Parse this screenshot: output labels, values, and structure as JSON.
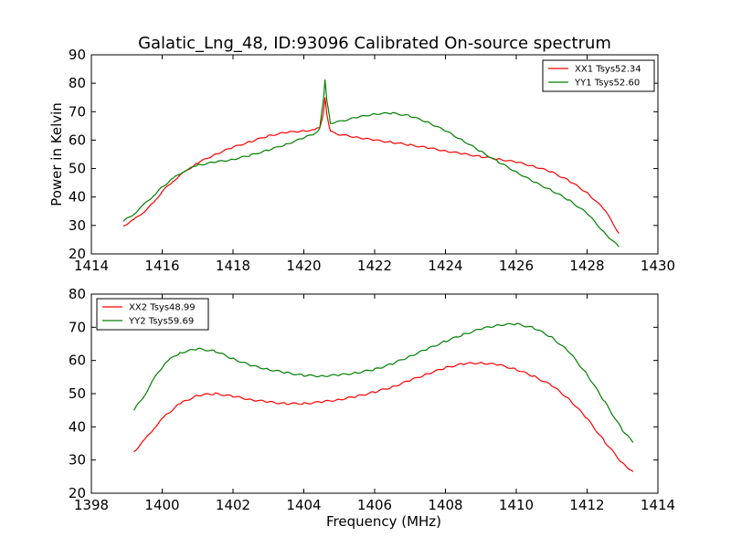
{
  "title": "Galatic_Lng_48, ID:93096 Calibrated On-source spectrum",
  "chart_data": [
    {
      "type": "line",
      "title": "Galatic_Lng_48, ID:93096 Calibrated On-source spectrum",
      "xlabel": "",
      "ylabel": "Power in Kelvin",
      "xlim": [
        1414,
        1430
      ],
      "ylim": [
        20,
        90
      ],
      "xticks": [
        1414,
        1416,
        1418,
        1420,
        1422,
        1424,
        1426,
        1428,
        1430
      ],
      "yticks": [
        20,
        30,
        40,
        50,
        60,
        70,
        80,
        90
      ],
      "legend_position": "top-right",
      "series": [
        {
          "name": "XX1 Tsys52.34",
          "color": "#ff0000",
          "points": [
            [
              1414.9,
              29.8
            ],
            [
              1415.2,
              32
            ],
            [
              1415.5,
              35
            ],
            [
              1415.8,
              38.5
            ],
            [
              1416.0,
              42
            ],
            [
              1416.3,
              45.5
            ],
            [
              1416.6,
              48.5
            ],
            [
              1417.0,
              52
            ],
            [
              1417.5,
              55
            ],
            [
              1418.0,
              57.5
            ],
            [
              1418.5,
              59.5
            ],
            [
              1419.0,
              61.5
            ],
            [
              1419.5,
              62.7
            ],
            [
              1420.0,
              63.3
            ],
            [
              1420.3,
              63.5
            ],
            [
              1420.45,
              64.5
            ],
            [
              1420.55,
              69
            ],
            [
              1420.6,
              75
            ],
            [
              1420.65,
              69
            ],
            [
              1420.75,
              63
            ],
            [
              1421.0,
              62
            ],
            [
              1421.5,
              61
            ],
            [
              1422.0,
              60
            ],
            [
              1422.5,
              59.2
            ],
            [
              1423.0,
              58.3
            ],
            [
              1423.5,
              57.3
            ],
            [
              1424.0,
              56.2
            ],
            [
              1424.5,
              55.2
            ],
            [
              1425.0,
              54.2
            ],
            [
              1425.5,
              53.3
            ],
            [
              1426.0,
              52.3
            ],
            [
              1426.5,
              50.8
            ],
            [
              1427.0,
              48.8
            ],
            [
              1427.5,
              45.7
            ],
            [
              1428.0,
              41.5
            ],
            [
              1428.5,
              35.5
            ],
            [
              1428.9,
              27.2
            ]
          ]
        },
        {
          "name": "YY1 Tsys52.60",
          "color": "#008000",
          "points": [
            [
              1414.9,
              31.5
            ],
            [
              1415.2,
              34
            ],
            [
              1415.5,
              37.5
            ],
            [
              1415.8,
              41
            ],
            [
              1416.0,
              43.5
            ],
            [
              1416.3,
              46.5
            ],
            [
              1416.6,
              49
            ],
            [
              1417.0,
              51.2
            ],
            [
              1417.5,
              52.3
            ],
            [
              1418.0,
              53.2
            ],
            [
              1418.5,
              54.7
            ],
            [
              1419.0,
              56.5
            ],
            [
              1419.5,
              58.5
            ],
            [
              1420.0,
              60.8
            ],
            [
              1420.3,
              62.3
            ],
            [
              1420.45,
              64
            ],
            [
              1420.55,
              74
            ],
            [
              1420.6,
              81
            ],
            [
              1420.65,
              74
            ],
            [
              1420.75,
              66
            ],
            [
              1421.0,
              66.5
            ],
            [
              1421.5,
              68
            ],
            [
              1422.0,
              69.2
            ],
            [
              1422.5,
              69.5
            ],
            [
              1423.0,
              68.5
            ],
            [
              1423.5,
              66.3
            ],
            [
              1424.0,
              63.3
            ],
            [
              1424.5,
              59.8
            ],
            [
              1425.0,
              56
            ],
            [
              1425.5,
              52.3
            ],
            [
              1426.0,
              48.8
            ],
            [
              1426.5,
              45.3
            ],
            [
              1427.0,
              42.3
            ],
            [
              1427.5,
              38.8
            ],
            [
              1428.0,
              34.3
            ],
            [
              1428.5,
              27.3
            ],
            [
              1428.9,
              22.5
            ]
          ]
        }
      ]
    },
    {
      "type": "line",
      "title": "",
      "xlabel": "Frequency (MHz)",
      "ylabel": "",
      "xlim": [
        1398,
        1414
      ],
      "ylim": [
        20,
        80
      ],
      "xticks": [
        1398,
        1400,
        1402,
        1404,
        1406,
        1408,
        1410,
        1412,
        1414
      ],
      "yticks": [
        20,
        30,
        40,
        50,
        60,
        70,
        80
      ],
      "legend_position": "top-left",
      "series": [
        {
          "name": "XX2 Tsys48.99",
          "color": "#ff0000",
          "points": [
            [
              1399.2,
              32.5
            ],
            [
              1399.5,
              36
            ],
            [
              1399.8,
              40
            ],
            [
              1400.1,
              43.5
            ],
            [
              1400.5,
              47
            ],
            [
              1401.0,
              49.5
            ],
            [
              1401.5,
              50
            ],
            [
              1402.0,
              49.2
            ],
            [
              1402.5,
              48.2
            ],
            [
              1403.0,
              47.5
            ],
            [
              1403.5,
              47
            ],
            [
              1404.0,
              47
            ],
            [
              1404.5,
              47.5
            ],
            [
              1405.0,
              48.2
            ],
            [
              1405.5,
              49.2
            ],
            [
              1406.0,
              50.5
            ],
            [
              1406.5,
              52
            ],
            [
              1407.0,
              54
            ],
            [
              1407.5,
              56
            ],
            [
              1408.0,
              57.8
            ],
            [
              1408.5,
              59
            ],
            [
              1409.0,
              59.3
            ],
            [
              1409.5,
              58.7
            ],
            [
              1410.0,
              57.3
            ],
            [
              1410.5,
              55.2
            ],
            [
              1411.0,
              52.5
            ],
            [
              1411.5,
              48.3
            ],
            [
              1412.0,
              42.5
            ],
            [
              1412.5,
              35.5
            ],
            [
              1413.0,
              29
            ],
            [
              1413.3,
              26.5
            ]
          ]
        },
        {
          "name": "YY2 Tsys59.69",
          "color": "#008000",
          "points": [
            [
              1399.2,
              45
            ],
            [
              1399.5,
              49.5
            ],
            [
              1399.8,
              55
            ],
            [
              1400.1,
              59.5
            ],
            [
              1400.5,
              62.3
            ],
            [
              1401.0,
              63.5
            ],
            [
              1401.5,
              62.8
            ],
            [
              1402.0,
              60.5
            ],
            [
              1402.5,
              58.5
            ],
            [
              1403.0,
              57.3
            ],
            [
              1403.5,
              56.3
            ],
            [
              1404.0,
              55.5
            ],
            [
              1404.5,
              55.3
            ],
            [
              1405.0,
              55.6
            ],
            [
              1405.5,
              56.3
            ],
            [
              1406.0,
              57.3
            ],
            [
              1406.5,
              59
            ],
            [
              1407.0,
              61.3
            ],
            [
              1407.5,
              63.5
            ],
            [
              1408.0,
              65.8
            ],
            [
              1408.5,
              67.8
            ],
            [
              1409.0,
              69.5
            ],
            [
              1409.5,
              70.7
            ],
            [
              1410.0,
              71
            ],
            [
              1410.5,
              69.8
            ],
            [
              1411.0,
              67
            ],
            [
              1411.5,
              62.5
            ],
            [
              1412.0,
              55.8
            ],
            [
              1412.5,
              47.5
            ],
            [
              1413.0,
              39
            ],
            [
              1413.3,
              35.3
            ]
          ]
        }
      ]
    }
  ]
}
